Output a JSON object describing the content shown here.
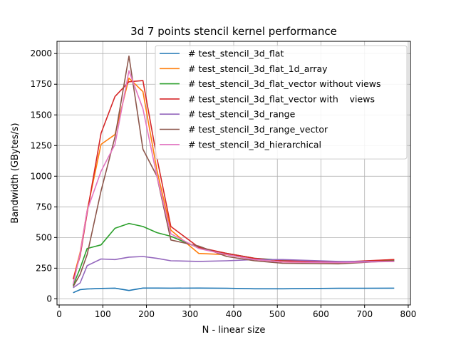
{
  "chart_data": {
    "type": "line",
    "title": "3d 7 points stencil kernel performance",
    "xlabel": "N - linear size",
    "ylabel": "Bandwidth (GBytes/s)",
    "xlim": [
      -5,
      805
    ],
    "ylim": [
      -50,
      2100
    ],
    "xticks": [
      0,
      100,
      200,
      300,
      400,
      500,
      600,
      700,
      800
    ],
    "yticks": [
      0,
      250,
      500,
      750,
      1000,
      1250,
      1500,
      1750,
      2000
    ],
    "grid": true,
    "legend_position": "top-right",
    "x": [
      32,
      48,
      64,
      96,
      128,
      160,
      192,
      224,
      256,
      320,
      384,
      448,
      512,
      640,
      768
    ],
    "series": [
      {
        "name": "# test_stencil_3d_flat",
        "color": "#1f77b4",
        "values": [
          50,
          75,
          80,
          85,
          87,
          68,
          88,
          88,
          87,
          88,
          86,
          82,
          82,
          86,
          87
        ]
      },
      {
        "name": "# test_stencil_3d_flat_1d_array",
        "color": "#ff7f0e",
        "values": [
          160,
          380,
          720,
          1260,
          1340,
          1800,
          1690,
          1050,
          560,
          370,
          360,
          320,
          300,
          295,
          320
        ]
      },
      {
        "name": "# test_stencil_3d_flat_vector without views",
        "color": "#2ca02c",
        "values": [
          110,
          250,
          410,
          440,
          575,
          615,
          590,
          540,
          510,
          415,
          370,
          330,
          315,
          300,
          315
        ]
      },
      {
        "name": "# test_stencil_3d_flat_vector with    views",
        "color": "#d62728",
        "values": [
          160,
          350,
          700,
          1350,
          1650,
          1770,
          1780,
          1150,
          590,
          420,
          370,
          330,
          310,
          300,
          320
        ]
      },
      {
        "name": "# test_stencil_3d_range",
        "color": "#9467bd",
        "values": [
          90,
          130,
          270,
          325,
          320,
          340,
          345,
          330,
          310,
          305,
          310,
          320,
          320,
          305,
          305
        ]
      },
      {
        "name": "# test_stencil_3d_range_vector",
        "color": "#8c564b",
        "values": [
          100,
          200,
          360,
          880,
          1320,
          1980,
          1220,
          1000,
          480,
          430,
          345,
          310,
          290,
          285,
          310
        ]
      },
      {
        "name": "# test_stencil_3d_hierarchical",
        "color": "#e377c2",
        "values": [
          120,
          370,
          720,
          1040,
          1260,
          1860,
          1550,
          1000,
          530,
          410,
          360,
          320,
          300,
          295,
          305
        ]
      }
    ]
  }
}
